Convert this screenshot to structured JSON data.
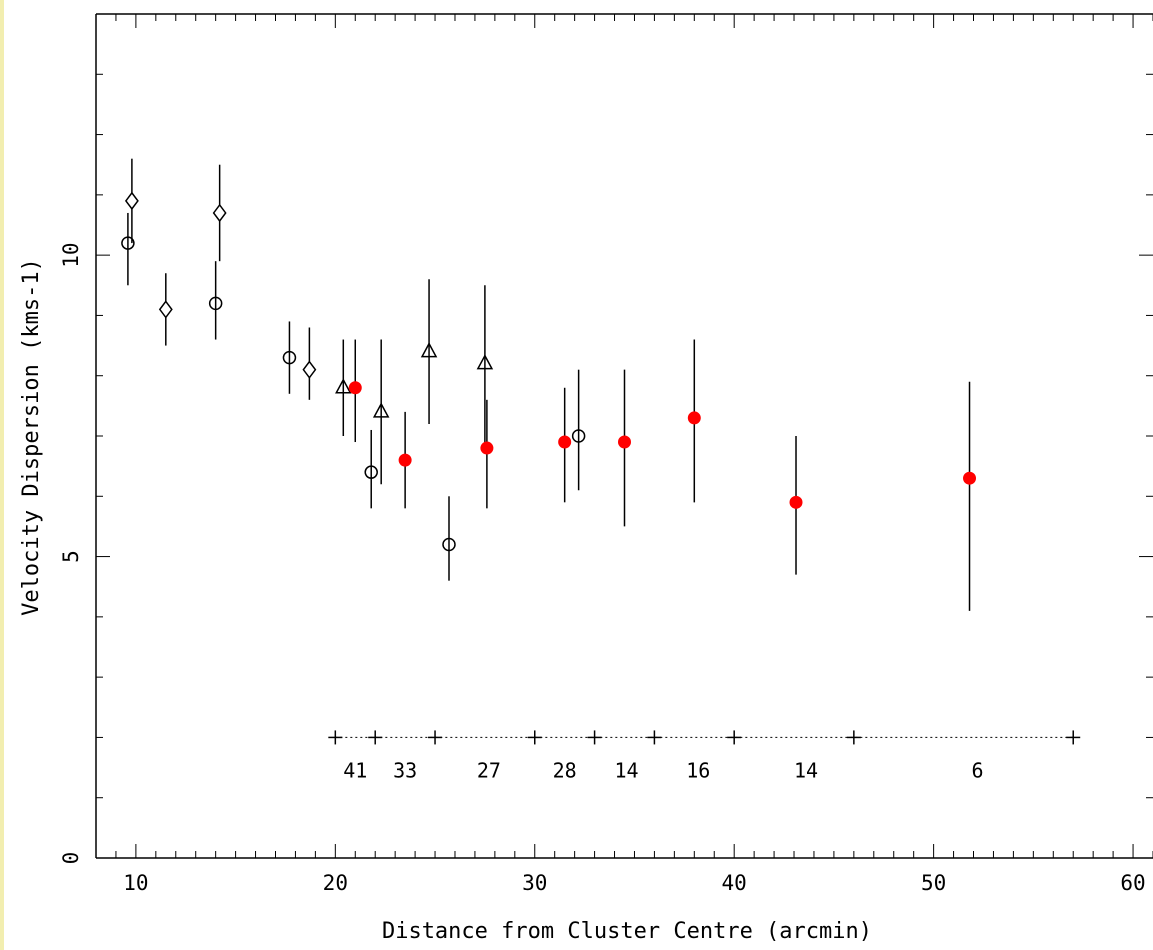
{
  "colors": {
    "frame_strip": "#f2eeb0",
    "axis": "#000000",
    "filled_marker": "#ff0000"
  },
  "chart_data": {
    "type": "scatter",
    "xlabel": "Distance from Cluster Centre (arcmin)",
    "ylabel": "Velocity Dispersion (kms-1)",
    "xlim": [
      8,
      61
    ],
    "ylim": [
      0,
      14
    ],
    "x_ticks": [
      10,
      20,
      30,
      40,
      50,
      60
    ],
    "y_ticks": [
      0,
      5,
      10
    ],
    "grid": false,
    "series": [
      {
        "marker": "circle",
        "points": [
          {
            "x": 9.6,
            "y": 10.2,
            "lo": 9.5,
            "hi": 10.7
          },
          {
            "x": 14.0,
            "y": 9.2,
            "lo": 8.6,
            "hi": 9.9
          },
          {
            "x": 17.7,
            "y": 8.3,
            "lo": 7.7,
            "hi": 8.9
          },
          {
            "x": 21.8,
            "y": 6.4,
            "lo": 5.8,
            "hi": 7.1
          },
          {
            "x": 25.7,
            "y": 5.2,
            "lo": 4.6,
            "hi": 6.0
          },
          {
            "x": 32.2,
            "y": 7.0,
            "lo": 6.1,
            "hi": 8.1
          }
        ]
      },
      {
        "marker": "diamond",
        "points": [
          {
            "x": 9.8,
            "y": 10.9,
            "lo": 10.2,
            "hi": 11.6
          },
          {
            "x": 11.5,
            "y": 9.1,
            "lo": 8.5,
            "hi": 9.7
          },
          {
            "x": 14.2,
            "y": 10.7,
            "lo": 9.9,
            "hi": 11.5
          },
          {
            "x": 18.7,
            "y": 8.1,
            "lo": 7.6,
            "hi": 8.8
          }
        ]
      },
      {
        "marker": "triangle",
        "points": [
          {
            "x": 20.4,
            "y": 7.8,
            "lo": 7.0,
            "hi": 8.6
          },
          {
            "x": 22.3,
            "y": 7.4,
            "lo": 6.2,
            "hi": 8.6
          },
          {
            "x": 24.7,
            "y": 8.4,
            "lo": 7.2,
            "hi": 9.6
          },
          {
            "x": 27.5,
            "y": 8.2,
            "lo": 6.8,
            "hi": 9.5
          }
        ]
      },
      {
        "marker": "filled-circle",
        "points": [
          {
            "x": 21.0,
            "y": 7.8,
            "lo": 6.9,
            "hi": 8.6
          },
          {
            "x": 23.5,
            "y": 6.6,
            "lo": 5.8,
            "hi": 7.4
          },
          {
            "x": 27.6,
            "y": 6.8,
            "lo": 5.8,
            "hi": 7.6
          },
          {
            "x": 31.5,
            "y": 6.9,
            "lo": 5.9,
            "hi": 7.8
          },
          {
            "x": 34.5,
            "y": 6.9,
            "lo": 5.5,
            "hi": 8.1
          },
          {
            "x": 38.0,
            "y": 7.3,
            "lo": 5.9,
            "hi": 8.6
          },
          {
            "x": 43.1,
            "y": 5.9,
            "lo": 4.7,
            "hi": 7.0
          },
          {
            "x": 51.8,
            "y": 6.3,
            "lo": 4.1,
            "hi": 7.9
          }
        ]
      }
    ],
    "bins": {
      "y": 2,
      "edges": [
        20,
        22,
        25,
        30,
        33,
        36,
        40,
        46,
        57
      ],
      "counts": [
        {
          "x": 21,
          "label": "41"
        },
        {
          "x": 23.5,
          "label": "33"
        },
        {
          "x": 27.7,
          "label": "27"
        },
        {
          "x": 31.5,
          "label": "28"
        },
        {
          "x": 34.6,
          "label": "14"
        },
        {
          "x": 38.2,
          "label": "16"
        },
        {
          "x": 43.6,
          "label": "14"
        },
        {
          "x": 52.2,
          "label": "6"
        }
      ]
    }
  }
}
